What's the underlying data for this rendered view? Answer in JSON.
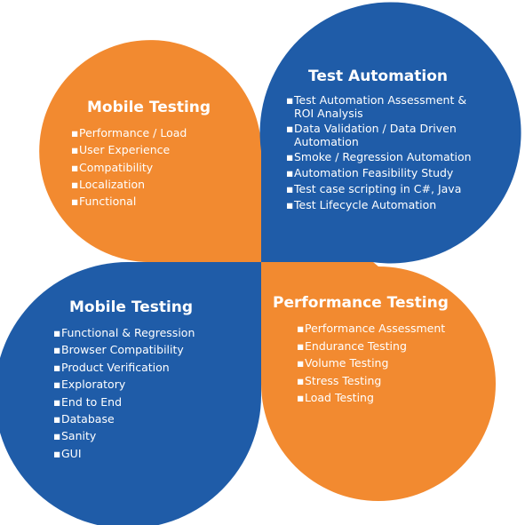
{
  "colors": {
    "orange": "#F28A30",
    "blue": "#1F5CA8",
    "text": "#FFFFFF"
  },
  "bullet": "▪",
  "quadrants": {
    "top_left": {
      "title": "Mobile Testing",
      "items": [
        "Performance / Load",
        "User Experience",
        "Compatibility",
        "Localization",
        "Functional"
      ]
    },
    "top_right": {
      "title": "Test Automation",
      "items": [
        "Test Automation Assessment & ROI Analysis",
        "Data Validation / Data Driven Automation",
        "Smoke / Regression Automation",
        "Automation Feasibility Study",
        "Test case scripting in C#, Java",
        "Test Lifecycle Automation"
      ]
    },
    "bottom_left": {
      "title": "Mobile Testing",
      "items": [
        "Functional & Regression",
        "Browser Compatibility",
        "Product Verification",
        "Exploratory",
        "End to End",
        "Database",
        "Sanity",
        "GUI"
      ]
    },
    "bottom_right": {
      "title": "Performance Testing",
      "items": [
        "Performance Assessment",
        "Endurance Testing",
        "Volume Testing",
        "Stress Testing",
        "Load Testing"
      ]
    }
  }
}
